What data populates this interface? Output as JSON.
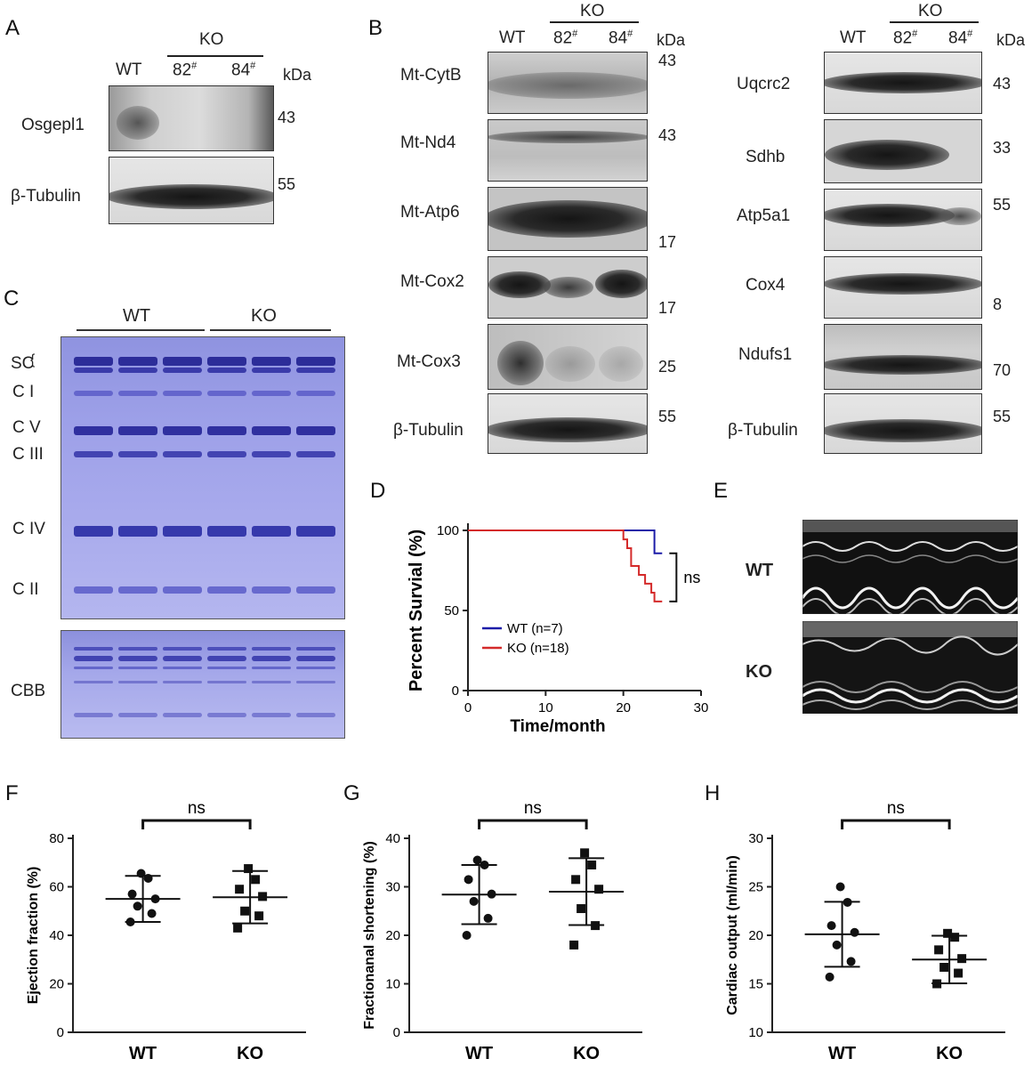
{
  "panels": {
    "A": "A",
    "B": "B",
    "C": "C",
    "D": "D",
    "E": "E",
    "F": "F",
    "G": "G",
    "H": "H"
  },
  "panelA": {
    "wt": "WT",
    "ko": "KO",
    "l82": "82",
    "l84": "84",
    "sup": "#",
    "kda": "kDa",
    "rows": [
      {
        "label": "Osgepl1",
        "mw": "43"
      },
      {
        "label": "β-Tubulin",
        "mw": "55"
      }
    ]
  },
  "panelB": {
    "wt": "WT",
    "ko": "KO",
    "l82": "82",
    "l84": "84",
    "sup": "#",
    "kda": "kDa",
    "left": [
      {
        "label": "Mt-CytB",
        "mw": "43"
      },
      {
        "label": "Mt-Nd4",
        "mw": "43"
      },
      {
        "label": "Mt-Atp6",
        "mw": "17"
      },
      {
        "label": "Mt-Cox2",
        "mw": "17"
      },
      {
        "label": "Mt-Cox3",
        "mw": "25"
      },
      {
        "label": "β-Tubulin",
        "mw": "55"
      }
    ],
    "right": [
      {
        "label": "Uqcrc2",
        "mw": "43"
      },
      {
        "label": "Sdhb",
        "mw": "33"
      },
      {
        "label": "Atp5a1",
        "mw": "55"
      },
      {
        "label": "Cox4",
        "mw": "8"
      },
      {
        "label": "Ndufs1",
        "mw": "70"
      },
      {
        "label": "β-Tubulin",
        "mw": "55"
      }
    ]
  },
  "panelC": {
    "wt": "WT",
    "ko": "KO",
    "complexes": [
      "SC",
      "C I",
      "C V",
      "C III",
      "C IV",
      "C II"
    ],
    "cbb": "CBB"
  },
  "panelE": {
    "wt": "WT",
    "ko": "KO"
  },
  "charts": {
    "D": {
      "type": "line",
      "xlabel": "Time/month",
      "ylabel": "Percent Survial (%)",
      "xlim": [
        0,
        30
      ],
      "ylim": [
        0,
        100
      ],
      "xticks": [
        "0",
        "10",
        "20",
        "30"
      ],
      "yticks": [
        "0",
        "50",
        "100"
      ],
      "sig": "ns",
      "series": [
        {
          "name": "WT (n=7)",
          "color": "#1c1ca8",
          "steps": [
            [
              0,
              100
            ],
            [
              24,
              100
            ],
            [
              24,
              85.7
            ],
            [
              25,
              85.7
            ]
          ]
        },
        {
          "name": "KO (n=18)",
          "color": "#d42a2a",
          "steps": [
            [
              0,
              100
            ],
            [
              20,
              100
            ],
            [
              20,
              94.4
            ],
            [
              20.5,
              94.4
            ],
            [
              20.5,
              88.9
            ],
            [
              21,
              88.9
            ],
            [
              21,
              77.8
            ],
            [
              22,
              77.8
            ],
            [
              22,
              72.2
            ],
            [
              22.8,
              72.2
            ],
            [
              22.8,
              66.7
            ],
            [
              23.6,
              66.7
            ],
            [
              23.6,
              61.1
            ],
            [
              24,
              61.1
            ],
            [
              24,
              55.6
            ],
            [
              25,
              55.6
            ]
          ]
        }
      ]
    },
    "F": {
      "type": "scatter",
      "ylabel": "Ejection fraction (%)",
      "categories": [
        "WT",
        "KO"
      ],
      "ylim": [
        0,
        80
      ],
      "yticks": [
        "0",
        "20",
        "40",
        "60",
        "80"
      ],
      "sig": "ns",
      "groups": [
        {
          "name": "WT",
          "marker": "circle",
          "mean": 55,
          "sd": 9.5,
          "values": [
            45.5,
            49,
            52,
            55,
            57,
            63.5,
            65.5
          ]
        },
        {
          "name": "KO",
          "marker": "square",
          "mean": 55.7,
          "sd": 10.8,
          "values": [
            43,
            48,
            50,
            56,
            59,
            63,
            67.5
          ]
        }
      ]
    },
    "G": {
      "type": "scatter",
      "ylabel": "Fractionanal shortening (%)",
      "categories": [
        "WT",
        "KO"
      ],
      "ylim": [
        0,
        40
      ],
      "yticks": [
        "0",
        "10",
        "20",
        "30",
        "40"
      ],
      "sig": "ns",
      "groups": [
        {
          "name": "WT",
          "marker": "circle",
          "mean": 28.4,
          "sd": 6.1,
          "values": [
            20,
            23.5,
            27,
            28.5,
            31.5,
            34.5,
            35.5
          ]
        },
        {
          "name": "KO",
          "marker": "square",
          "mean": 29,
          "sd": 6.9,
          "values": [
            18,
            22,
            25.5,
            29.5,
            31.5,
            34.5,
            37
          ]
        }
      ]
    },
    "H": {
      "type": "scatter",
      "ylabel": "Cardiac output (ml/min)",
      "categories": [
        "WT",
        "KO"
      ],
      "ylim": [
        10,
        30
      ],
      "yticks": [
        "10",
        "15",
        "20",
        "25",
        "30"
      ],
      "sig": "ns",
      "groups": [
        {
          "name": "WT",
          "marker": "circle",
          "mean": 20.1,
          "sd": 3.35,
          "values": [
            15.7,
            17.3,
            19,
            20.3,
            21,
            23.4,
            25
          ]
        },
        {
          "name": "KO",
          "marker": "square",
          "mean": 17.5,
          "sd": 2.45,
          "values": [
            15,
            16.1,
            16.7,
            17.6,
            18.5,
            19.8,
            20.2
          ]
        }
      ]
    }
  }
}
